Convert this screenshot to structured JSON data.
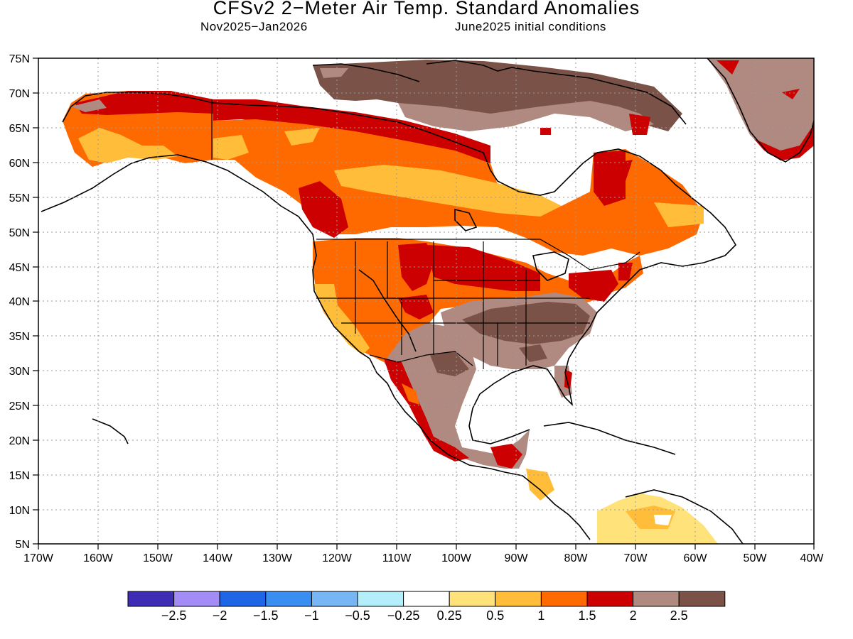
{
  "title": "CFSv2 2−Meter Air Temp. Standard Anomalies",
  "subtitle_left": "Nov2025−Jan2026",
  "subtitle_right": "June2025 initial conditions",
  "map": {
    "lon_range": [
      -170,
      -40
    ],
    "lat_range": [
      5,
      75
    ],
    "lon_ticks": [
      "170W",
      "160W",
      "150W",
      "140W",
      "130W",
      "120W",
      "110W",
      "100W",
      "90W",
      "80W",
      "70W",
      "60W",
      "50W",
      "40W"
    ],
    "lat_ticks": [
      "5N",
      "10N",
      "15N",
      "20N",
      "25N",
      "30N",
      "35N",
      "40N",
      "45N",
      "50N",
      "55N",
      "60N",
      "65N",
      "70N",
      "75N"
    ],
    "grid": "dotted"
  },
  "colorbar": {
    "colors": [
      "#3f2cb4",
      "#a38cf5",
      "#1f66e6",
      "#3a8ef2",
      "#76b6f5",
      "#b4eefa",
      "#ffffff",
      "#ffe37a",
      "#ffbd3a",
      "#ff6a00",
      "#cc0000",
      "#b08a80",
      "#7a5248"
    ],
    "labels": [
      "−2.5",
      "−2",
      "−1.5",
      "−1",
      "−0.5",
      "−0.25",
      "0.25",
      "0.5",
      "1",
      "1.5",
      "2",
      "2.5"
    ]
  },
  "regions": [
    {
      "name": "alaska",
      "anomaly_class": "1.5-2"
    },
    {
      "name": "western-canada",
      "anomaly_class": "1-1.5"
    },
    {
      "name": "central-canada-band",
      "anomaly_class": "0.5-1"
    },
    {
      "name": "eastern-arctic-canada",
      "anomaly_class": ">2.5"
    },
    {
      "name": "greenland",
      "anomaly_class": "2-2.5"
    },
    {
      "name": "western-us",
      "anomaly_class": "1-1.5"
    },
    {
      "name": "southeast-us",
      "anomaly_class": ">2.5"
    },
    {
      "name": "mexico",
      "anomaly_class": "2-2.5"
    },
    {
      "name": "northern-south-america",
      "anomaly_class": "0.25-0.5"
    }
  ]
}
